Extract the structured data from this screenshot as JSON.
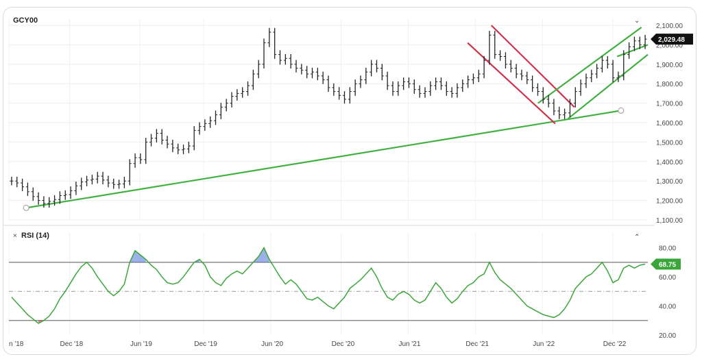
{
  "chart_data": [
    {
      "type": "line",
      "title": "GCY00",
      "ylim": [
        1100,
        2100
      ],
      "price_ticks": [
        "2,100.00",
        "2,000.00",
        "1,900.00",
        "1,800.00",
        "1,700.00",
        "1,600.00",
        "1,500.00",
        "1,400.00",
        "1,300.00",
        "1,200.00",
        "1,100.00"
      ],
      "x_ticks": [
        "n '18",
        "Dec '18",
        "Jun '19",
        "Dec '19",
        "Jun '20",
        "Dec '20",
        "Jun '21",
        "Dec '21",
        "Jun '22",
        "Dec '22"
      ],
      "last_price": "2,029.48",
      "grid": true,
      "series": [
        {
          "values": [
            1300,
            1290,
            1270,
            1245,
            1220,
            1200,
            1185,
            1195,
            1205,
            1225,
            1230,
            1250,
            1275,
            1295,
            1305,
            1310,
            1325,
            1305,
            1290,
            1282,
            1285,
            1300,
            1390,
            1420,
            1410,
            1500,
            1520,
            1545,
            1510,
            1490,
            1470,
            1460,
            1465,
            1480,
            1560,
            1580,
            1595,
            1610,
            1640,
            1680,
            1700,
            1735,
            1750,
            1760,
            1790,
            1850,
            1900,
            2010,
            2065,
            1950,
            1920,
            1930,
            1900,
            1880,
            1870,
            1850,
            1860,
            1840,
            1820,
            1780,
            1760,
            1740,
            1720,
            1760,
            1800,
            1820,
            1860,
            1900,
            1880,
            1840,
            1790,
            1760,
            1790,
            1810,
            1800,
            1770,
            1750,
            1760,
            1790,
            1810,
            1790,
            1760,
            1750,
            1780,
            1800,
            1820,
            1830,
            1850,
            1920,
            2050,
            1950,
            1940,
            1900,
            1880,
            1850,
            1840,
            1820,
            1780,
            1760,
            1720,
            1700,
            1660,
            1640,
            1650,
            1700,
            1760,
            1800,
            1830,
            1850,
            1880,
            1920,
            1900,
            1830,
            1840,
            1950,
            1990,
            2020,
            2000,
            2029
          ]
        }
      ],
      "trendlines": [
        {
          "color": "#40b040",
          "points": [
            [
              0.027,
              1162
            ],
            [
              0.958,
              1662
            ]
          ]
        },
        {
          "color": "#d0304a",
          "points": [
            [
              0.718,
              2010
            ],
            [
              0.855,
              1595
            ]
          ]
        },
        {
          "color": "#d0304a",
          "points": [
            [
              0.755,
              2100
            ],
            [
              0.885,
              1680
            ]
          ]
        },
        {
          "color": "#40b040",
          "points": [
            [
              0.875,
              1620
            ],
            [
              1.0,
              1950
            ]
          ]
        },
        {
          "color": "#40b040",
          "points": [
            [
              0.828,
              1700
            ],
            [
              0.99,
              2090
            ]
          ]
        },
        {
          "color": "#40b040",
          "points": [
            [
              0.952,
              1940
            ],
            [
              1.0,
              2000
            ]
          ]
        }
      ]
    },
    {
      "type": "line",
      "title": "RSI (14)",
      "ylim": [
        20,
        85
      ],
      "rsi_ticks": [
        "80.00",
        "60.00",
        "40.00",
        "20.00"
      ],
      "last_value": "68.75",
      "overbought": 70,
      "oversold": 30,
      "midline": 50,
      "series": [
        {
          "values": [
            46,
            42,
            38,
            34,
            31,
            28,
            30,
            33,
            38,
            45,
            50,
            56,
            62,
            67,
            70,
            66,
            60,
            55,
            50,
            47,
            50,
            55,
            70,
            78,
            75,
            72,
            68,
            65,
            60,
            56,
            55,
            56,
            60,
            65,
            70,
            72,
            68,
            60,
            56,
            54,
            59,
            62,
            64,
            62,
            66,
            70,
            74,
            80,
            72,
            66,
            60,
            55,
            58,
            55,
            50,
            45,
            44,
            46,
            43,
            40,
            38,
            42,
            46,
            52,
            55,
            58,
            62,
            66,
            60,
            52,
            46,
            44,
            48,
            50,
            48,
            44,
            42,
            44,
            50,
            56,
            52,
            46,
            42,
            45,
            50,
            54,
            56,
            60,
            62,
            70,
            63,
            58,
            55,
            52,
            48,
            44,
            40,
            38,
            36,
            34,
            33,
            32,
            34,
            38,
            44,
            52,
            56,
            60,
            62,
            66,
            70,
            64,
            56,
            58,
            66,
            68,
            66,
            68,
            68.75
          ]
        }
      ]
    }
  ],
  "ui": {
    "ticker": "GCY00",
    "rsi_label": "RSI (14)",
    "close_x": "×",
    "collapse_icon": "chevron-up-icon",
    "expand_icon": "chevron-down-icon"
  },
  "colors": {
    "price_bar": "#222222",
    "rsi_line": "#3aa63a",
    "rsi_overbought_fill": "#4b6fd8",
    "rsi_oversold_fill": "#d02030",
    "trend_green": "#40b040",
    "trend_red": "#d0304a",
    "badge_dark": "#111111",
    "badge_green": "#3aa63a"
  }
}
